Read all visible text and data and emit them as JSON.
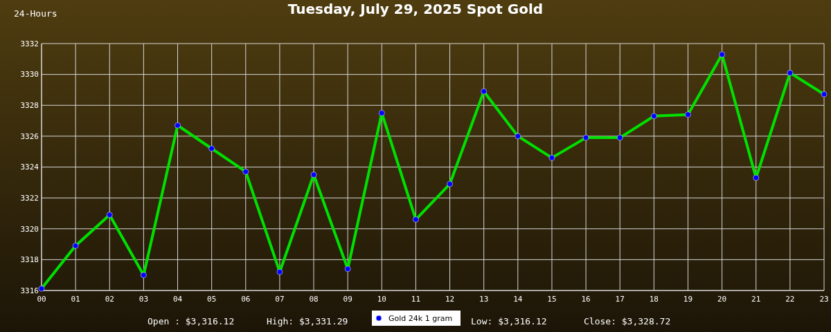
{
  "chart_data": {
    "type": "line",
    "title": "Tuesday, July 29, 2025 Spot Gold",
    "categories": [
      "00",
      "01",
      "02",
      "03",
      "04",
      "05",
      "06",
      "07",
      "08",
      "09",
      "10",
      "11",
      "12",
      "13",
      "14",
      "15",
      "16",
      "17",
      "18",
      "19",
      "20",
      "21",
      "22",
      "23"
    ],
    "series": [
      {
        "color": "#00e000",
        "marker": "none",
        "line_style": "solid",
        "values": [
          3316.12,
          3318.9,
          3320.9,
          3317.0,
          3326.7,
          3325.2,
          3323.7,
          3317.2,
          3323.5,
          3317.4,
          3327.5,
          3320.6,
          3322.9,
          3328.9,
          3326.0,
          3324.6,
          3325.9,
          3325.9,
          3327.3,
          3327.4,
          3331.29,
          3323.3,
          3330.1,
          3328.72
        ]
      },
      {
        "type": "scatter",
        "name": "Gold 24k 1 gram",
        "color": "#0000ff",
        "marker": "circle",
        "x": [
          "00",
          "01",
          "02",
          "03",
          "04",
          "05",
          "06",
          "07",
          "08",
          "09",
          "10",
          "11",
          "12",
          "13",
          "14",
          "15",
          "16",
          "17",
          "18",
          "19",
          "20",
          "21",
          "22",
          "23"
        ],
        "values": [
          3316.12,
          3318.9,
          3320.9,
          3317.0,
          3326.7,
          3325.2,
          3323.7,
          3317.2,
          3323.5,
          3317.4,
          3327.5,
          3320.6,
          3322.9,
          3328.9,
          3326.0,
          3324.6,
          3325.9,
          3325.9,
          3327.3,
          3327.4,
          3331.29,
          3323.3,
          3330.1,
          3328.72
        ]
      }
    ],
    "ylim": [
      3316,
      3332
    ],
    "yticks": [
      3316,
      3318,
      3320,
      3322,
      3324,
      3326,
      3328,
      3330,
      3332
    ],
    "grid": true,
    "legend": "bottom",
    "annotations": [
      "24-Hours",
      "Open : $3,316.12",
      "High: $3,331.29",
      "Low: $3,316.12",
      "Close: $3,328.72"
    ]
  }
}
